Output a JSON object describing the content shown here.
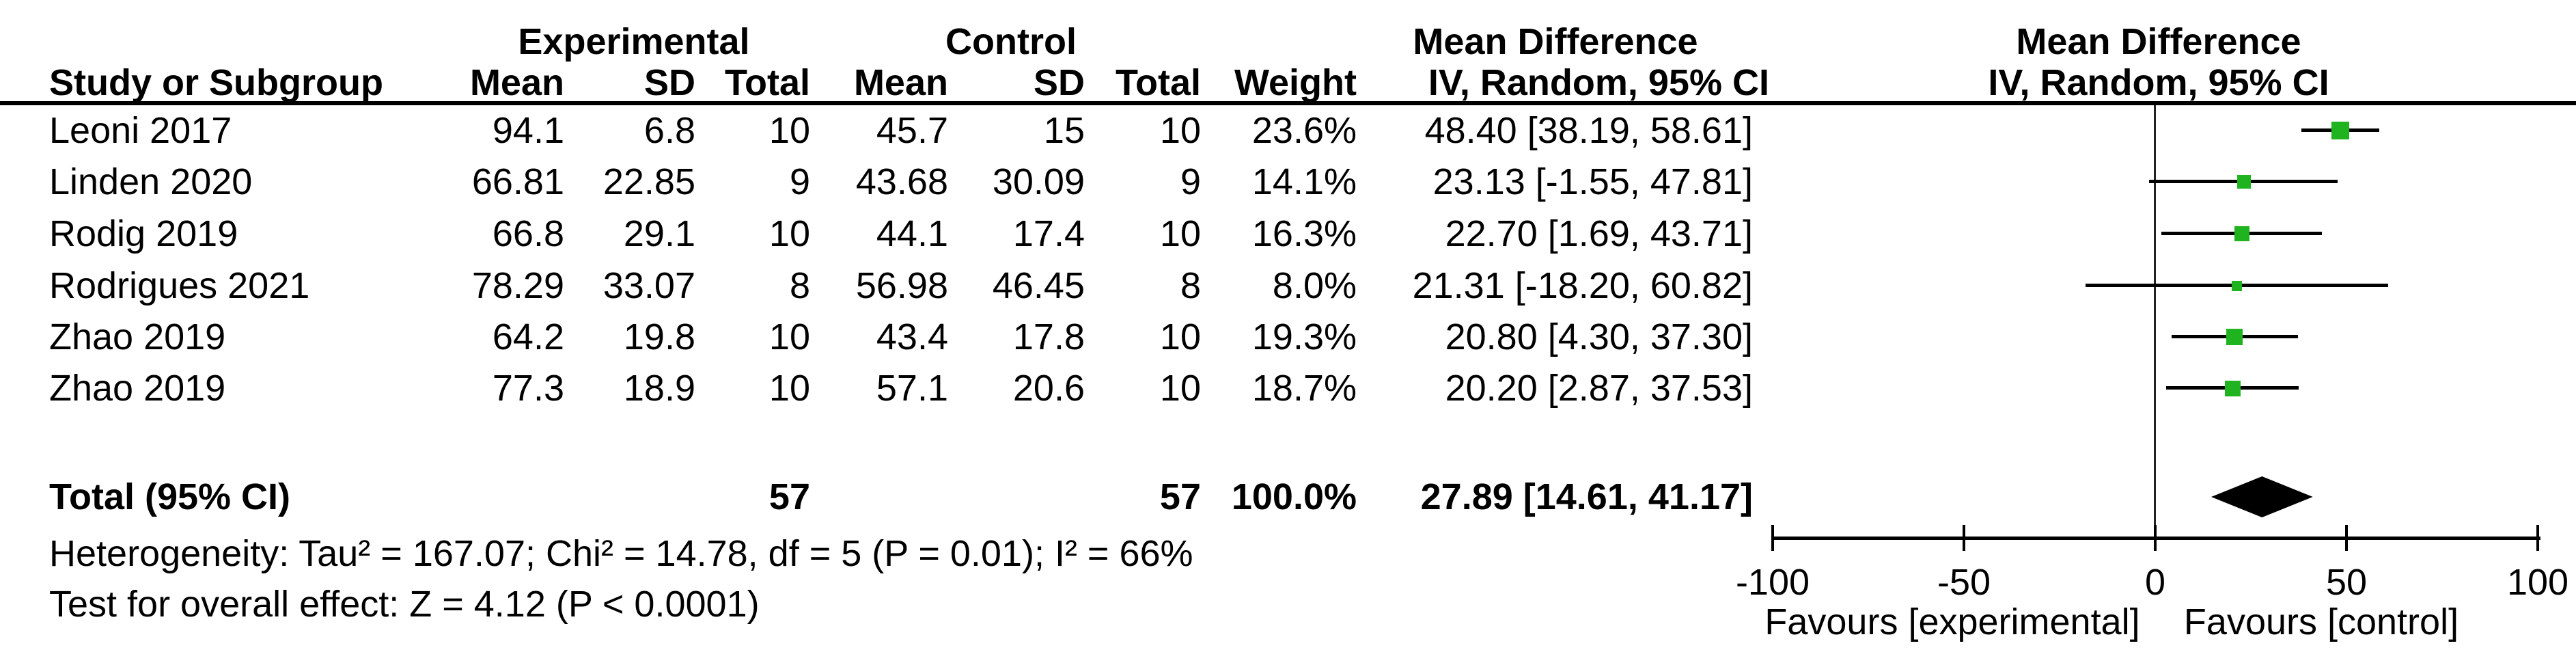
{
  "header": {
    "group_experimental": "Experimental",
    "group_control": "Control",
    "md_table": "Mean Difference",
    "md_plot": "Mean Difference",
    "col_study": "Study or Subgroup",
    "col_mean": "Mean",
    "col_sd": "SD",
    "col_total": "Total",
    "col_weight": "Weight",
    "col_iv_table": "IV, Random, 95% CI",
    "col_iv_plot": "IV, Random, 95% CI"
  },
  "studies": [
    {
      "study": "Leoni 2017",
      "mean_e": "94.1",
      "sd_e": "6.8",
      "total_e": "10",
      "mean_c": "45.7",
      "sd_c": "15",
      "total_c": "10",
      "weight": "23.6%",
      "ci_text": "48.40 [38.19, 58.61]",
      "est": 48.4,
      "lo": 38.19,
      "hi": 58.61,
      "weight_val": 23.6
    },
    {
      "study": "Linden 2020",
      "mean_e": "66.81",
      "sd_e": "22.85",
      "total_e": "9",
      "mean_c": "43.68",
      "sd_c": "30.09",
      "total_c": "9",
      "weight": "14.1%",
      "ci_text": "23.13 [-1.55, 47.81]",
      "est": 23.13,
      "lo": -1.55,
      "hi": 47.81,
      "weight_val": 14.1
    },
    {
      "study": "Rodig 2019",
      "mean_e": "66.8",
      "sd_e": "29.1",
      "total_e": "10",
      "mean_c": "44.1",
      "sd_c": "17.4",
      "total_c": "10",
      "weight": "16.3%",
      "ci_text": "22.70 [1.69, 43.71]",
      "est": 22.7,
      "lo": 1.69,
      "hi": 43.71,
      "weight_val": 16.3
    },
    {
      "study": "Rodrigues 2021",
      "mean_e": "78.29",
      "sd_e": "33.07",
      "total_e": "8",
      "mean_c": "56.98",
      "sd_c": "46.45",
      "total_c": "8",
      "weight": "8.0%",
      "ci_text": "21.31 [-18.20, 60.82]",
      "est": 21.31,
      "lo": -18.2,
      "hi": 60.82,
      "weight_val": 8.0
    },
    {
      "study": "Zhao 2019",
      "mean_e": "64.2",
      "sd_e": "19.8",
      "total_e": "10",
      "mean_c": "43.4",
      "sd_c": "17.8",
      "total_c": "10",
      "weight": "19.3%",
      "ci_text": "20.80 [4.30, 37.30]",
      "est": 20.8,
      "lo": 4.3,
      "hi": 37.3,
      "weight_val": 19.3
    },
    {
      "study": "Zhao 2019",
      "mean_e": "77.3",
      "sd_e": "18.9",
      "total_e": "10",
      "mean_c": "57.1",
      "sd_c": "20.6",
      "total_c": "10",
      "weight": "18.7%",
      "ci_text": "20.20 [2.87, 37.53]",
      "est": 20.2,
      "lo": 2.87,
      "hi": 37.53,
      "weight_val": 18.7
    }
  ],
  "total": {
    "label": "Total (95% CI)",
    "total_e": "57",
    "total_c": "57",
    "weight": "100.0%",
    "ci_text": "27.89 [14.61, 41.17]",
    "est": 27.89,
    "lo": 14.61,
    "hi": 41.17
  },
  "footer": {
    "heterogeneity": "Heterogeneity: Tau² = 167.07; Chi² = 14.78, df = 5 (P = 0.01); I² = 66%",
    "overall_effect": "Test for overall effect: Z = 4.12 (P < 0.0001)"
  },
  "axis": {
    "tick_labels": [
      "-100",
      "-50",
      "0",
      "50",
      "100"
    ],
    "tick_values": [
      -100,
      -50,
      0,
      50,
      100
    ],
    "min": -100,
    "max": 100,
    "favours_left": "Favours [experimental]",
    "favours_right": "Favours [control]"
  },
  "colors": {
    "marker_green": "#1fb41f",
    "line_black": "#000000",
    "text_black": "#000000"
  },
  "chart_data": {
    "type": "forest",
    "title": "Mean Difference, IV, Random, 95% CI",
    "xlabel_left": "Favours [experimental]",
    "xlabel_right": "Favours [control]",
    "x_ticks": [
      -100,
      -50,
      0,
      50,
      100
    ],
    "xlim": [
      -100,
      100
    ],
    "effect_measure": "Mean Difference",
    "model": "IV, Random, 95% CI",
    "studies": [
      {
        "name": "Leoni 2017",
        "mean_exp": 94.1,
        "sd_exp": 6.8,
        "n_exp": 10,
        "mean_ctrl": 45.7,
        "sd_ctrl": 15,
        "n_ctrl": 10,
        "weight_pct": 23.6,
        "md": 48.4,
        "ci_low": 38.19,
        "ci_high": 58.61
      },
      {
        "name": "Linden 2020",
        "mean_exp": 66.81,
        "sd_exp": 22.85,
        "n_exp": 9,
        "mean_ctrl": 43.68,
        "sd_ctrl": 30.09,
        "n_ctrl": 9,
        "weight_pct": 14.1,
        "md": 23.13,
        "ci_low": -1.55,
        "ci_high": 47.81
      },
      {
        "name": "Rodig 2019",
        "mean_exp": 66.8,
        "sd_exp": 29.1,
        "n_exp": 10,
        "mean_ctrl": 44.1,
        "sd_ctrl": 17.4,
        "n_ctrl": 10,
        "weight_pct": 16.3,
        "md": 22.7,
        "ci_low": 1.69,
        "ci_high": 43.71
      },
      {
        "name": "Rodrigues 2021",
        "mean_exp": 78.29,
        "sd_exp": 33.07,
        "n_exp": 8,
        "mean_ctrl": 56.98,
        "sd_ctrl": 46.45,
        "n_ctrl": 8,
        "weight_pct": 8.0,
        "md": 21.31,
        "ci_low": -18.2,
        "ci_high": 60.82
      },
      {
        "name": "Zhao 2019",
        "mean_exp": 64.2,
        "sd_exp": 19.8,
        "n_exp": 10,
        "mean_ctrl": 43.4,
        "sd_ctrl": 17.8,
        "n_ctrl": 10,
        "weight_pct": 19.3,
        "md": 20.8,
        "ci_low": 4.3,
        "ci_high": 37.3
      },
      {
        "name": "Zhao 2019",
        "mean_exp": 77.3,
        "sd_exp": 18.9,
        "n_exp": 10,
        "mean_ctrl": 57.1,
        "sd_ctrl": 20.6,
        "n_ctrl": 10,
        "weight_pct": 18.7,
        "md": 20.2,
        "ci_low": 2.87,
        "ci_high": 37.53
      }
    ],
    "total": {
      "n_exp": 57,
      "n_ctrl": 57,
      "weight_pct": 100.0,
      "md": 27.89,
      "ci_low": 14.61,
      "ci_high": 41.17
    },
    "heterogeneity": {
      "tau2": 167.07,
      "chi2": 14.78,
      "df": 5,
      "p": 0.01,
      "i2_pct": 66
    },
    "overall_effect": {
      "z": 4.12,
      "p": "< 0.0001"
    }
  }
}
